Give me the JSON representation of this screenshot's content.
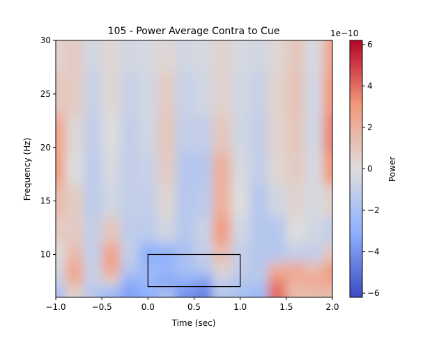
{
  "chart_data": {
    "type": "heatmap",
    "title": "105 - Power Average Contra to Cue",
    "xlabel": "Time (sec)",
    "ylabel": "Frequency (Hz)",
    "xlim": [
      -1.0,
      2.0
    ],
    "ylim": [
      6,
      30
    ],
    "xticks": [
      -1.0,
      -0.5,
      0.0,
      0.5,
      1.0,
      1.5,
      2.0
    ],
    "xtick_labels": [
      "−1.0",
      "−0.5",
      "0.0",
      "0.5",
      "1.0",
      "1.5",
      "2.0"
    ],
    "yticks": [
      10,
      15,
      20,
      25,
      30
    ],
    "ytick_labels": [
      "10",
      "15",
      "20",
      "25",
      "30"
    ],
    "colormap": "coolwarm",
    "colormap_colors": [
      "#3b4cc0",
      "#8db0fe",
      "#dddddd",
      "#f4987a",
      "#b40426"
    ],
    "colorbar": {
      "label": "Power",
      "offset_label": "1e−10",
      "range": [
        -6.2,
        6.2
      ],
      "ticks": [
        -6,
        -4,
        -2,
        0,
        2,
        4,
        6
      ],
      "tick_labels": [
        "−6",
        "−4",
        "−2",
        "0",
        "2",
        "4",
        "6"
      ]
    },
    "grid": false,
    "annotation_rectangle": {
      "time": [
        0.0,
        1.0
      ],
      "frequency": [
        7,
        10
      ],
      "color": "#000000"
    },
    "times": [
      -1.0,
      -0.8,
      -0.6,
      -0.4,
      -0.2,
      0.0,
      0.2,
      0.4,
      0.6,
      0.8,
      1.0,
      1.2,
      1.4,
      1.6,
      1.8,
      2.0
    ],
    "frequencies": [
      29,
      25,
      21,
      18,
      15,
      12,
      10,
      8.5,
      7.5,
      6.5
    ],
    "values_1e-10": [
      [
        0.5,
        0.8,
        -0.5,
        0.3,
        -0.5,
        -0.3,
        0.3,
        -0.5,
        -0.3,
        0.5,
        -0.3,
        -0.5,
        0.3,
        1.0,
        -0.3,
        2.5
      ],
      [
        1.0,
        0.8,
        -0.8,
        0.3,
        -0.8,
        -0.5,
        0.8,
        -0.8,
        -0.5,
        0.5,
        -0.5,
        -0.8,
        0.5,
        1.2,
        -0.5,
        3.0
      ],
      [
        2.5,
        0.3,
        -1.0,
        0.0,
        -1.0,
        -0.5,
        1.0,
        -1.0,
        -1.0,
        1.0,
        -0.5,
        -1.0,
        0.5,
        1.0,
        -0.5,
        3.5
      ],
      [
        2.8,
        0.0,
        -1.2,
        -0.3,
        -1.0,
        -0.8,
        0.8,
        -1.5,
        -1.5,
        2.0,
        -0.3,
        -1.0,
        0.3,
        0.8,
        -0.3,
        3.0
      ],
      [
        1.5,
        0.8,
        -1.2,
        -0.5,
        -1.0,
        -1.0,
        0.3,
        -1.5,
        -1.3,
        2.0,
        0.0,
        -1.5,
        -0.5,
        0.5,
        -0.3,
        0.5
      ],
      [
        0.8,
        0.8,
        -1.0,
        1.0,
        -1.2,
        -1.2,
        -0.5,
        -1.5,
        -0.8,
        2.8,
        -0.5,
        -1.5,
        -1.5,
        0.0,
        -0.5,
        -1.0
      ],
      [
        0.0,
        1.5,
        -1.0,
        2.5,
        -1.0,
        -3.0,
        -3.0,
        -2.0,
        -1.0,
        1.5,
        -1.0,
        -1.5,
        -1.5,
        -1.0,
        -1.0,
        1.0
      ],
      [
        -0.5,
        2.5,
        -0.8,
        2.5,
        -1.5,
        -2.5,
        -2.5,
        -2.0,
        -1.5,
        0.5,
        -1.0,
        -1.5,
        2.0,
        2.5,
        1.5,
        3.0
      ],
      [
        -0.8,
        2.0,
        -1.0,
        0.5,
        -3.0,
        -2.5,
        -3.5,
        -3.0,
        -3.5,
        -1.0,
        -1.5,
        -1.5,
        3.5,
        2.0,
        2.5,
        2.5
      ],
      [
        -2.0,
        0.5,
        -1.5,
        -2.5,
        -3.5,
        -3.0,
        -2.0,
        -4.0,
        -4.5,
        -1.5,
        -2.0,
        -2.5,
        4.0,
        1.5,
        1.5,
        1.5
      ]
    ]
  }
}
